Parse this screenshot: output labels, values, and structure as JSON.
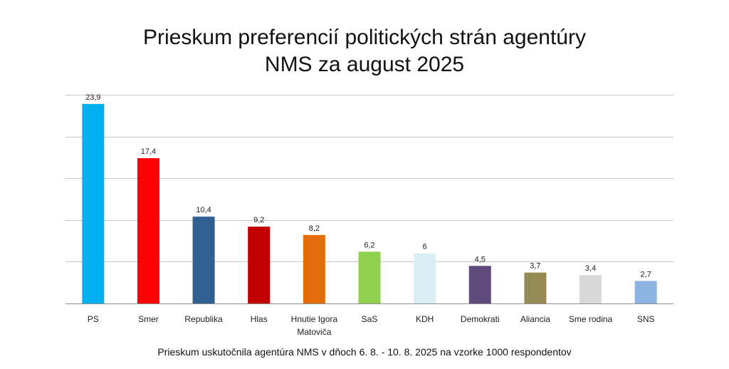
{
  "chart_data": {
    "type": "bar",
    "title_line1": "Prieskum preferencií politických strán agentúry",
    "title_line2": "NMS za august 2025",
    "categories": [
      "PS",
      "Smer",
      "Republika",
      "Hlas",
      "Hnutie Igora Matoviča",
      "SaS",
      "KDH",
      "Demokrati",
      "Aliancia",
      "Sme rodina",
      "SNS"
    ],
    "category_lines": [
      [
        "PS"
      ],
      [
        "Smer"
      ],
      [
        "Republika"
      ],
      [
        "Hlas"
      ],
      [
        "Hnutie Igora",
        "Matoviča"
      ],
      [
        "SaS"
      ],
      [
        "KDH"
      ],
      [
        "Demokrati"
      ],
      [
        "Aliancia"
      ],
      [
        "Sme rodina"
      ],
      [
        "SNS"
      ]
    ],
    "values": [
      23.9,
      17.4,
      10.4,
      9.2,
      8.2,
      6.2,
      6,
      4.5,
      3.7,
      3.4,
      2.7
    ],
    "value_labels": [
      "23,9",
      "17,4",
      "10,4",
      "9,2",
      "8,2",
      "6,2",
      "6",
      "4,5",
      "3,7",
      "3,4",
      "2,7"
    ],
    "colors": [
      "#00b0f0",
      "#ff0000",
      "#305f91",
      "#c00000",
      "#e46c0a",
      "#92d050",
      "#daeef3",
      "#604a7b",
      "#948a54",
      "#d9d9d9",
      "#8db3e2"
    ],
    "ylim": [
      0,
      25
    ],
    "gridline_step": 5,
    "grid": true,
    "xlabel": "",
    "ylabel": "",
    "footnote": "Prieskum uskutočnila agentúra NMS v dňoch 6. 8. - 10. 8. 2025 na vzorke 1000 respondentov"
  }
}
